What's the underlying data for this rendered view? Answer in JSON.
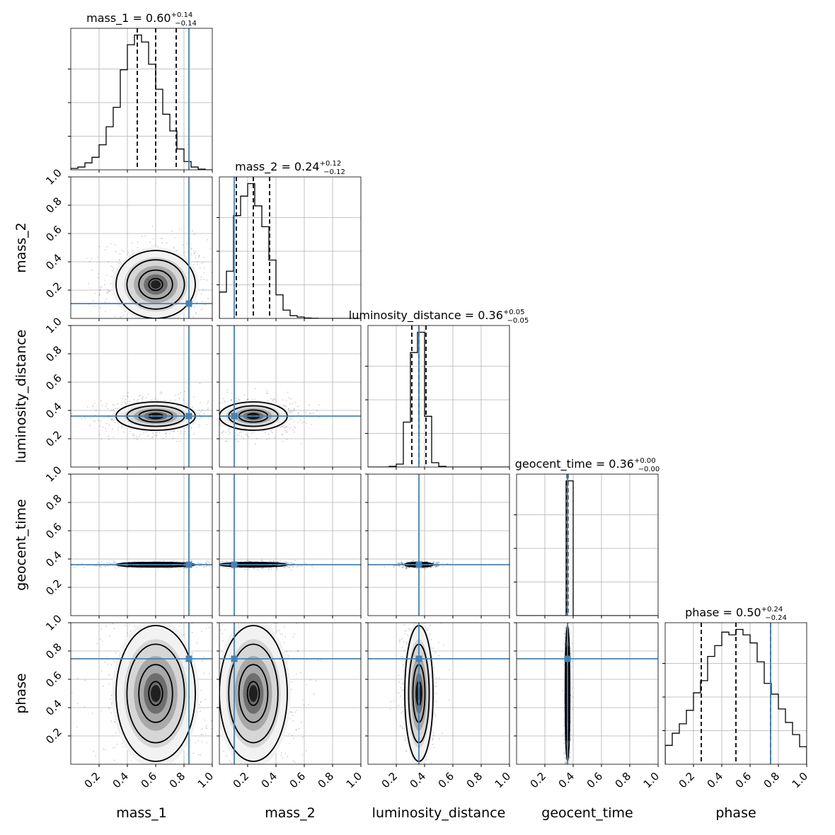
{
  "chart_data": {
    "type": "corner",
    "parameters": [
      "mass_1",
      "mass_2",
      "luminosity_distance",
      "geocent_time",
      "phase"
    ],
    "axis_range": [
      0,
      1
    ],
    "ticks": [
      0.2,
      0.4,
      0.6,
      0.8,
      1.0
    ],
    "tick_labels": [
      "0.2",
      "0.4",
      "0.6",
      "0.8",
      "1.0"
    ],
    "grid": true,
    "truth_color": "#4682b4",
    "truths": {
      "mass_1": 0.835,
      "mass_2": 0.105,
      "luminosity_distance": 0.36,
      "geocent_time": 0.36,
      "phase": 0.745
    },
    "summaries": [
      {
        "param": "mass_1",
        "label": "mass_1",
        "median": "0.60",
        "plus": "+0.14",
        "minus": "−0.14",
        "q_low": 0.47,
        "q_med": 0.6,
        "q_high": 0.745
      },
      {
        "param": "mass_2",
        "label": "mass_2",
        "median": "0.24",
        "plus": "+0.12",
        "minus": "−0.12",
        "q_low": 0.12,
        "q_med": 0.24,
        "q_high": 0.355
      },
      {
        "param": "luminosity_distance",
        "label": "luminosity_distance",
        "median": "0.36",
        "plus": "+0.05",
        "minus": "−0.05",
        "q_low": 0.31,
        "q_med": 0.36,
        "q_high": 0.41
      },
      {
        "param": "geocent_time",
        "label": "geocent_time",
        "median": "0.36",
        "plus": "+0.00",
        "minus": "−0.00",
        "q_low": 0.357,
        "q_med": 0.36,
        "q_high": 0.363
      },
      {
        "param": "phase",
        "label": "phase",
        "median": "0.50",
        "plus": "+0.24",
        "minus": "−0.24",
        "q_low": 0.255,
        "q_med": 0.5,
        "q_high": 0.745
      }
    ],
    "histograms": {
      "mass_1": {
        "bin_edges": [
          0.0,
          0.05,
          0.1,
          0.15,
          0.2,
          0.25,
          0.3,
          0.35,
          0.4,
          0.45,
          0.5,
          0.55,
          0.6,
          0.65,
          0.7,
          0.75,
          0.8,
          0.85,
          0.9,
          0.95,
          1.0
        ],
        "counts": [
          0.01,
          0.02,
          0.05,
          0.09,
          0.18,
          0.31,
          0.45,
          0.72,
          0.9,
          0.97,
          0.92,
          0.76,
          0.58,
          0.4,
          0.28,
          0.15,
          0.06,
          0.02,
          0.005,
          0.0
        ]
      },
      "mass_2": {
        "bin_edges": [
          0.0,
          0.05,
          0.1,
          0.15,
          0.2,
          0.25,
          0.3,
          0.35,
          0.4,
          0.45,
          0.5,
          0.55,
          0.6,
          0.65,
          0.7,
          0.75,
          0.8,
          0.85,
          0.9,
          0.95,
          1.0
        ],
        "counts": [
          0.19,
          0.34,
          0.74,
          0.88,
          0.97,
          0.81,
          0.66,
          0.42,
          0.17,
          0.06,
          0.02,
          0.01,
          0.003,
          0.001,
          0,
          0,
          0,
          0,
          0,
          0
        ]
      },
      "luminosity_distance": {
        "bin_edges": [
          0.0,
          0.05,
          0.1,
          0.15,
          0.2,
          0.25,
          0.3,
          0.35,
          0.4,
          0.45,
          0.5,
          0.55,
          0.6,
          0.65,
          0.7,
          0.75,
          0.8,
          0.85,
          0.9,
          0.95,
          1.0
        ],
        "counts": [
          0,
          0,
          0,
          0.005,
          0.02,
          0.31,
          0.79,
          0.93,
          0.35,
          0.03,
          0.005,
          0,
          0,
          0,
          0,
          0,
          0,
          0,
          0,
          0
        ]
      },
      "geocent_time": {
        "bin_edges": [
          0.0,
          0.05,
          0.1,
          0.15,
          0.2,
          0.25,
          0.3,
          0.35,
          0.4,
          0.45,
          0.5,
          0.55,
          0.6,
          0.65,
          0.7,
          0.75,
          0.8,
          0.85,
          0.9,
          0.95,
          1.0
        ],
        "counts": [
          0,
          0,
          0,
          0,
          0,
          0,
          0,
          0.95,
          0,
          0,
          0,
          0,
          0,
          0,
          0,
          0,
          0,
          0,
          0,
          0
        ]
      },
      "phase": {
        "bin_edges": [
          0.0,
          0.05,
          0.1,
          0.15,
          0.2,
          0.25,
          0.3,
          0.35,
          0.4,
          0.45,
          0.5,
          0.55,
          0.6,
          0.65,
          0.7,
          0.75,
          0.8,
          0.85,
          0.9,
          0.95,
          1.0
        ],
        "counts": [
          0.14,
          0.23,
          0.3,
          0.4,
          0.53,
          0.62,
          0.8,
          0.88,
          0.98,
          0.96,
          1.0,
          0.96,
          0.9,
          0.76,
          0.6,
          0.52,
          0.41,
          0.31,
          0.22,
          0.13
        ]
      }
    },
    "posteriors": {
      "mass_1": {
        "mean": 0.6,
        "sd": 0.14
      },
      "mass_2": {
        "mean": 0.24,
        "sd": 0.12
      },
      "luminosity_distance": {
        "mean": 0.36,
        "sd": 0.05
      },
      "geocent_time": {
        "mean": 0.36,
        "sd": 0.008
      },
      "phase": {
        "mean": 0.5,
        "sd": 0.24
      }
    }
  }
}
